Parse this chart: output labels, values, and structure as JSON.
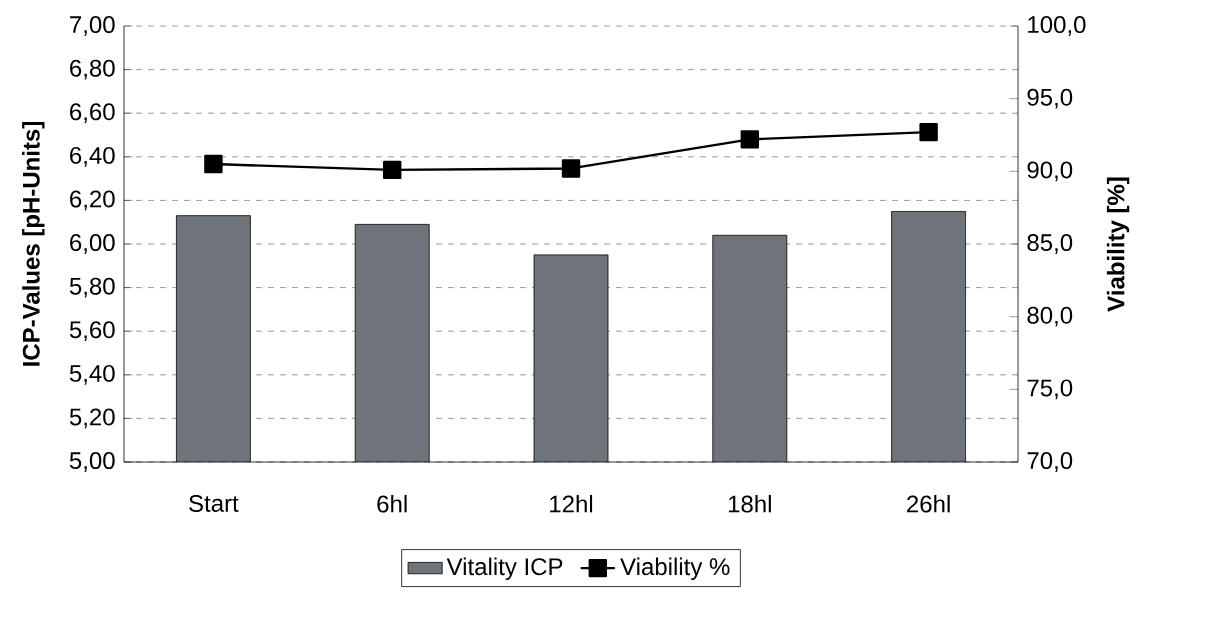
{
  "chart_data": {
    "type": "bar",
    "categories": [
      "Start",
      "6hl",
      "12hl",
      "18hl",
      "26hl"
    ],
    "ylabel": "ICP-Values [pH-Units]",
    "y2label": "Viability [%]",
    "series": [
      {
        "name": "Vitality ICP",
        "color": "#6e7479",
        "values": [
          6.13,
          6.09,
          5.95,
          6.04,
          6.15
        ]
      },
      {
        "name": "Viability %",
        "type": "line",
        "axis": "y2",
        "color": "#000000",
        "values": [
          90.5,
          90.1,
          90.2,
          92.2,
          92.7
        ]
      }
    ],
    "ylim": [
      5,
      7
    ],
    "yticks": [
      {
        "value": 5,
        "label": "5,00"
      },
      {
        "value": 5.2,
        "label": "5,20"
      },
      {
        "value": 5.4,
        "label": "5,40"
      },
      {
        "value": 5.6,
        "label": "5,60"
      },
      {
        "value": 5.8,
        "label": "5,80"
      },
      {
        "value": 6,
        "label": "6,00"
      },
      {
        "value": 6.2,
        "label": "6,20"
      },
      {
        "value": 6.4,
        "label": "6,40"
      },
      {
        "value": 6.6,
        "label": "6,60"
      },
      {
        "value": 6.8,
        "label": "6,80"
      },
      {
        "value": 7,
        "label": "7,00"
      }
    ],
    "y2lim": [
      70,
      100
    ],
    "y2ticks": [
      {
        "value": 70,
        "label": "70,0"
      },
      {
        "value": 75,
        "label": "75,0"
      },
      {
        "value": 80,
        "label": "80,0"
      },
      {
        "value": 85,
        "label": "85,0"
      },
      {
        "value": 90,
        "label": "90,0"
      },
      {
        "value": 95,
        "label": "95,0"
      },
      {
        "value": 100,
        "label": "100,0"
      }
    ],
    "grid": "y",
    "legend": "bottom",
    "marker": "square",
    "line_style": "solid"
  }
}
